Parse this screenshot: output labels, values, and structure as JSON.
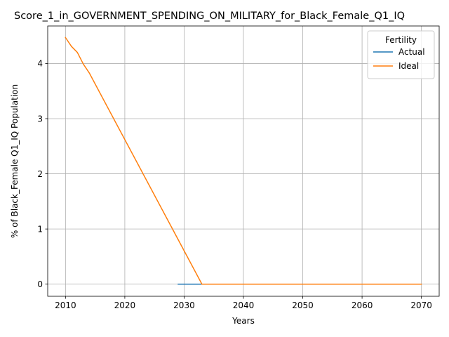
{
  "chart_data": {
    "type": "line",
    "title": "Score_1_in_GOVERNMENT_SPENDING_ON_MILITARY_for_Black_Female_Q1_IQ",
    "xlabel": "Years",
    "ylabel": "% of Black_Female Q1_IQ Population",
    "xlim": [
      2007,
      2073
    ],
    "ylim": [
      -0.22,
      4.68
    ],
    "xticks": [
      2010,
      2020,
      2030,
      2040,
      2050,
      2060,
      2070
    ],
    "yticks": [
      0,
      1,
      2,
      3,
      4
    ],
    "grid": true,
    "legend": {
      "title": "Fertility",
      "placement": "top-right"
    },
    "series": [
      {
        "name": "Actual",
        "color": "#1f77b4",
        "x": [
          2029,
          2030,
          2031,
          2032,
          2033
        ],
        "y": [
          0,
          0,
          0,
          0,
          0
        ]
      },
      {
        "name": "Ideal",
        "color": "#ff7f0e",
        "x": [
          2010,
          2011,
          2012,
          2013,
          2014,
          2033,
          2034,
          2040,
          2050,
          2060,
          2070
        ],
        "y": [
          4.47,
          4.31,
          4.2,
          3.99,
          3.83,
          0,
          0,
          0,
          0,
          0,
          0
        ]
      }
    ]
  }
}
